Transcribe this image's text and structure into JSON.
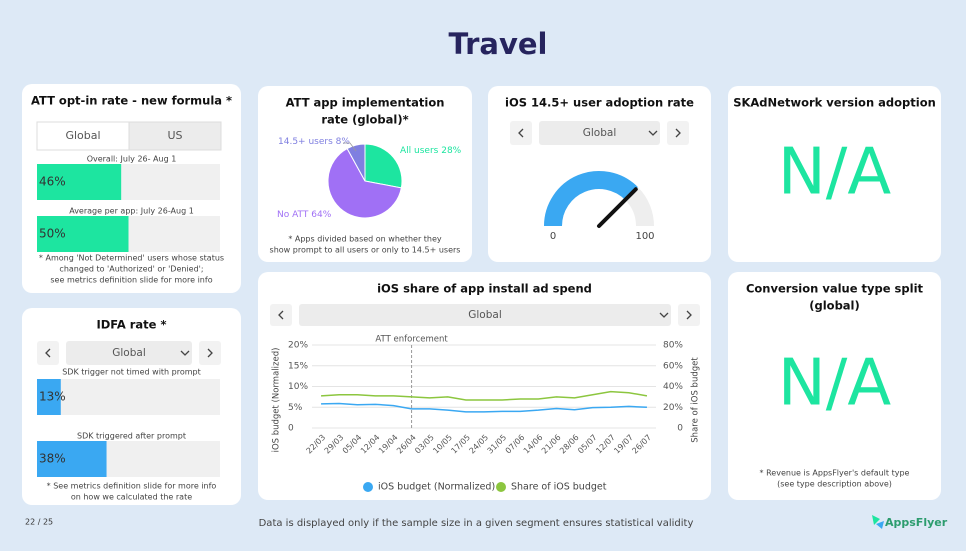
{
  "title": "Travel",
  "page_number": "22 / 25",
  "footer_note": "Data is displayed only if the sample size in a given segment ensures statistical validity",
  "logo": "AppsFlyer",
  "chart_data": [
    {
      "type": "bar",
      "title": "ATT opt-in rate - new formula *",
      "tabs": [
        "Global",
        "US"
      ],
      "categories": [
        "Overall: July 26- Aug 1",
        "Average per app: July 26-Aug 1"
      ],
      "values": [
        46,
        50
      ],
      "value_labels": [
        "46%",
        "50%"
      ],
      "color": "#1de5a0",
      "xlim": [
        0,
        100
      ],
      "footnote": [
        "* Among 'Not Determined' users whose status",
        "changed to 'Authorized' or 'Denied';",
        "see metrics definition slide for more info"
      ]
    },
    {
      "type": "bar",
      "title": "IDFA rate *",
      "dropdown": "Global",
      "categories": [
        "SDK trigger not timed with prompt",
        "SDK triggered after prompt"
      ],
      "values": [
        13,
        38
      ],
      "value_labels": [
        "13%",
        "38%"
      ],
      "color": "#3aa8f2",
      "xlim": [
        0,
        100
      ],
      "footnote": [
        "* See metrics definition slide for more info",
        "on how we calculated the rate"
      ]
    },
    {
      "type": "pie",
      "title": [
        "ATT app implementation",
        "rate (global)*"
      ],
      "categories": [
        "All users",
        "No ATT",
        "14.5+ users"
      ],
      "values": [
        28,
        64,
        8
      ],
      "value_labels": [
        "28%",
        "64%",
        "8%"
      ],
      "colors": [
        "#1de5a0",
        "#a070f5",
        "#7f7fe0"
      ],
      "footnote": [
        "* Apps divided based on whether they",
        "show prompt to all users or only to 14.5+ users"
      ]
    },
    {
      "type": "gauge",
      "title": "iOS 14.5+ user adoption rate",
      "dropdown": "Global",
      "value": 75,
      "ylim": [
        0,
        100
      ],
      "yticks": [
        0,
        100
      ],
      "color": "#3aa8f2"
    },
    {
      "type": "na",
      "title": "SKAdNetwork version adoption",
      "text": "N/A"
    },
    {
      "type": "line",
      "title": "iOS share of app install ad spend",
      "dropdown": "Global",
      "categories": [
        "22/03",
        "29/03",
        "05/04",
        "12/04",
        "19/04",
        "26/04",
        "03/05",
        "10/05",
        "17/05",
        "24/05",
        "31/05",
        "07/06",
        "14/06",
        "21/06",
        "28/06",
        "05/07",
        "12/07",
        "19/07",
        "26/07"
      ],
      "series": [
        {
          "name": "iOS budget (Normalized)",
          "color": "#3aa8f2",
          "values": [
            5.8,
            5.9,
            5.6,
            5.7,
            5.4,
            4.6,
            4.6,
            4.3,
            3.9,
            3.9,
            4.0,
            4.0,
            4.3,
            4.7,
            4.4,
            4.9,
            5.0,
            5.2,
            5.0
          ]
        },
        {
          "name": "Share of iOS budget",
          "color": "#8cc63f",
          "axis": "y2",
          "values": [
            31,
            32,
            32,
            31,
            31,
            30,
            29,
            30,
            27,
            27,
            27,
            28,
            28,
            30,
            29,
            32,
            35,
            34,
            31
          ]
        }
      ],
      "ylim": [
        0,
        20
      ],
      "yticks": [
        0,
        {
          "value": 5,
          "label": "5%"
        },
        {
          "value": 10,
          "label": "10%"
        },
        {
          "value": 15,
          "label": "15%"
        },
        {
          "value": 20,
          "label": "20%"
        }
      ],
      "y2lim": [
        0,
        80
      ],
      "y2ticks": [
        0,
        {
          "value": 20,
          "label": "20%"
        },
        {
          "value": 40,
          "label": "40%"
        },
        {
          "value": 60,
          "label": "60%"
        },
        {
          "value": 80,
          "label": "80%"
        }
      ],
      "ylabel": "iOS budget (Normalized)",
      "y2label": "Share of iOS budget",
      "grid": true,
      "annotation": {
        "text": "ATT enforcement",
        "at": "26/04"
      }
    },
    {
      "type": "na",
      "title": [
        "Conversion value type split",
        "(global)"
      ],
      "text": "N/A",
      "footnote": [
        "* Revenue is AppsFlyer's default type",
        "(see type description above)"
      ]
    }
  ]
}
